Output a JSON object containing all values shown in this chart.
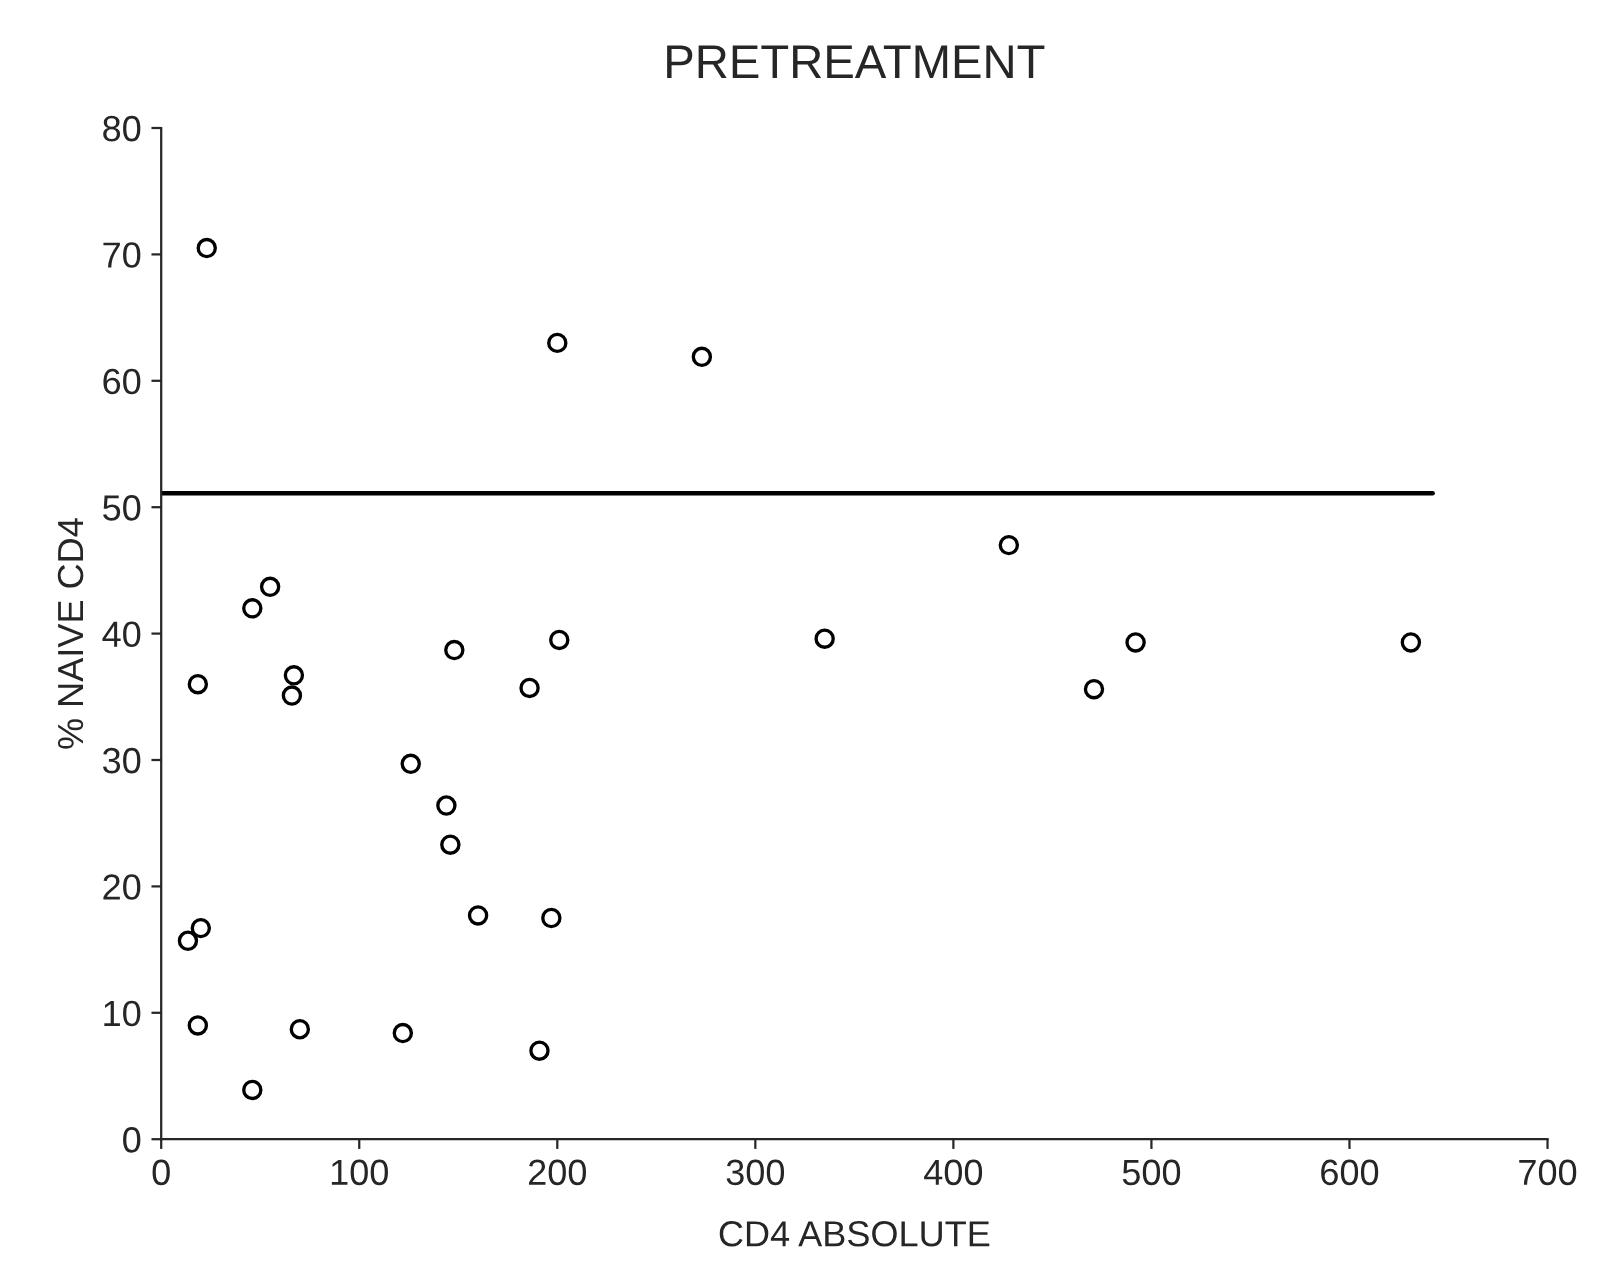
{
  "chart_data": {
    "type": "scatter",
    "title": "PRETREATMENT",
    "xlabel": "CD4 ABSOLUTE",
    "ylabel": "% NAIVE CD4",
    "xlim": [
      0,
      700
    ],
    "ylim": [
      0,
      80
    ],
    "xticks": [
      0,
      100,
      200,
      300,
      400,
      500,
      600,
      700
    ],
    "yticks": [
      0,
      10,
      20,
      30,
      40,
      50,
      60,
      70,
      80
    ],
    "grid": false,
    "legend": false,
    "marker": "circle",
    "series": [
      {
        "color": "#000000",
        "x": [
          23,
          200,
          273,
          55,
          46,
          148,
          201,
          18.5,
          67,
          66,
          186,
          126,
          144,
          146,
          160,
          197,
          13.5,
          20,
          18.5,
          70,
          122,
          191,
          46,
          335,
          428,
          492,
          471,
          631
        ],
        "values": [
          70.5,
          63.0,
          61.9,
          43.7,
          42.0,
          38.7,
          39.5,
          36.0,
          36.7,
          35.1,
          35.7,
          29.7,
          26.4,
          23.3,
          17.7,
          17.5,
          15.7,
          16.7,
          9.0,
          8.7,
          8.4,
          7.0,
          3.9,
          39.6,
          47.0,
          39.3,
          35.6,
          39.3
        ]
      },
      {
        "type": "line",
        "color": "#000000",
        "x": [
          0,
          642
        ],
        "values": [
          51.1,
          51.1
        ],
        "marker": "none",
        "line_style": "solid"
      }
    ]
  }
}
